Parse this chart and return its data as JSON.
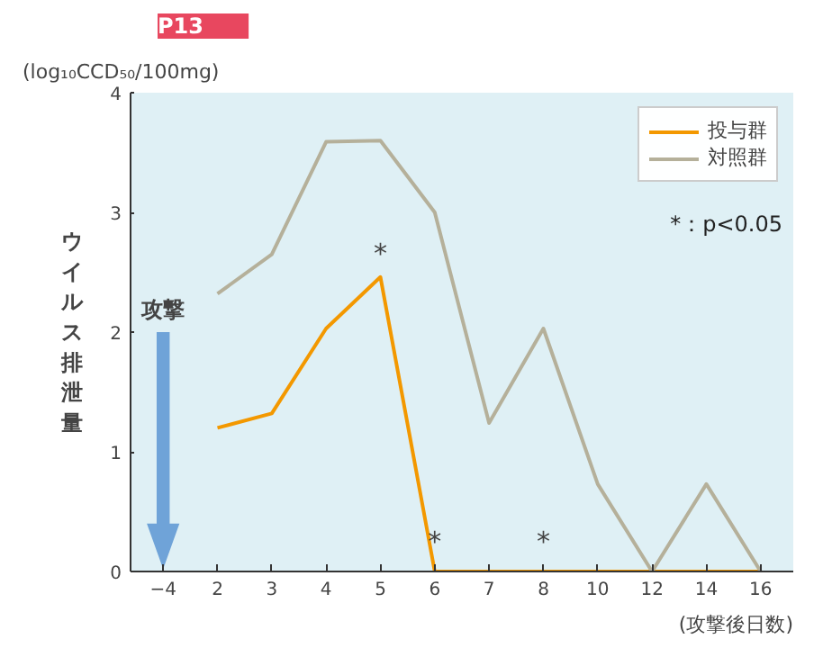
{
  "chart_data": {
    "type": "line",
    "title": "P13",
    "subtitle": "(log₁₀CCD₅₀/100mg)",
    "ylabel": "ウイルス排泄量",
    "xlabel": "(攻撃後日数)",
    "categories": [
      "−4",
      "2",
      "3",
      "4",
      "5",
      "6",
      "7",
      "8",
      "10",
      "12",
      "14",
      "16"
    ],
    "series": [
      {
        "name": "投与群",
        "color": "#f39800",
        "values": [
          null,
          1.2,
          1.32,
          2.03,
          2.46,
          0,
          0,
          0,
          0,
          0,
          0,
          0
        ]
      },
      {
        "name": "対照群",
        "color": "#b5b09a",
        "values": [
          null,
          2.32,
          2.65,
          3.59,
          3.6,
          3.0,
          1.24,
          2.03,
          0.73,
          0,
          0.73,
          0
        ]
      }
    ],
    "ylim": [
      0,
      4
    ],
    "yticks": [
      0,
      1,
      2,
      3,
      4
    ],
    "legend": "top right",
    "marker": "none",
    "line_style": "solid",
    "annotations": [
      "攻撃",
      {
        "text": "*",
        "x": "5",
        "y": 2.46
      },
      {
        "text": "*",
        "x": "6",
        "y": 0.05
      },
      {
        "text": "*",
        "x": "8",
        "y": 0.05
      },
      "*：p<0.05"
    ]
  }
}
